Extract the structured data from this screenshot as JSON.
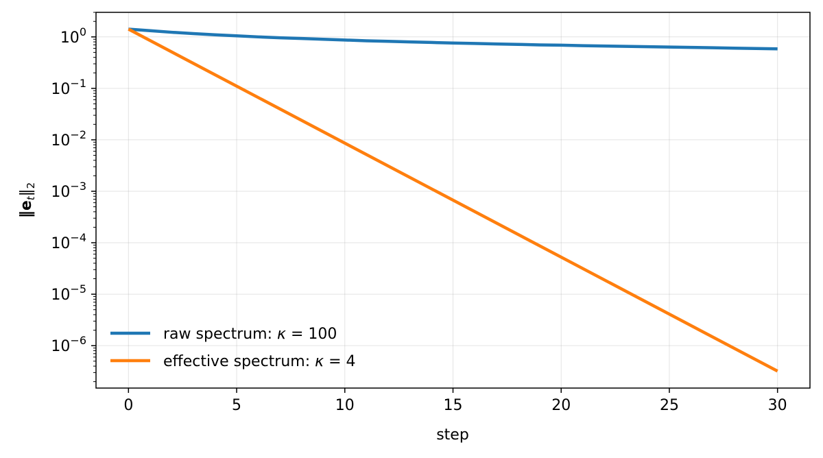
{
  "chart_data": {
    "type": "line",
    "title": "",
    "xlabel": "step",
    "ylabel_main": "‖e",
    "ylabel_sub": "t",
    "ylabel_end": "‖",
    "ylabel_end_sub": "2",
    "x_scale": "linear",
    "y_scale": "log",
    "xlim": [
      -1.5,
      31.5
    ],
    "ylim": [
      1.5e-07,
      3.0
    ],
    "x_ticks": [
      0,
      5,
      10,
      15,
      20,
      25,
      30
    ],
    "x_tick_labels": [
      "0",
      "5",
      "10",
      "15",
      "20",
      "25",
      "30"
    ],
    "y_ticks_exp": [
      0,
      -1,
      -2,
      -3,
      -4,
      -5,
      -6
    ],
    "y_tick_base": "10",
    "y_tick_exp_labels": [
      "0",
      "−1",
      "−2",
      "−3",
      "−4",
      "−5",
      "−6"
    ],
    "grid": true,
    "legend_position": "lower-left",
    "series": [
      {
        "name": "raw spectrum: κ = 100",
        "name_prefix": "raw spectrum: ",
        "name_var": "κ",
        "name_rel": " = 100",
        "color": "#1f77b4",
        "x": [
          0,
          1,
          2,
          3,
          4,
          5,
          6,
          7,
          8,
          9,
          10,
          11,
          12,
          13,
          14,
          15,
          16,
          17,
          18,
          19,
          20,
          21,
          22,
          23,
          24,
          25,
          26,
          27,
          28,
          29,
          30
        ],
        "y": [
          1.414,
          1.32,
          1.23,
          1.16,
          1.1,
          1.05,
          1.0,
          0.96,
          0.93,
          0.9,
          0.87,
          0.84,
          0.82,
          0.8,
          0.78,
          0.76,
          0.745,
          0.73,
          0.715,
          0.7,
          0.69,
          0.675,
          0.665,
          0.655,
          0.645,
          0.635,
          0.625,
          0.615,
          0.605,
          0.595,
          0.585
        ]
      },
      {
        "name": "effective spectrum: κ = 4",
        "name_prefix": "effective spectrum: ",
        "name_var": "κ",
        "name_rel": " = 4",
        "color": "#ff7f0e",
        "x": [
          0,
          30
        ],
        "y": [
          1.414,
          3.2e-07
        ]
      }
    ]
  }
}
